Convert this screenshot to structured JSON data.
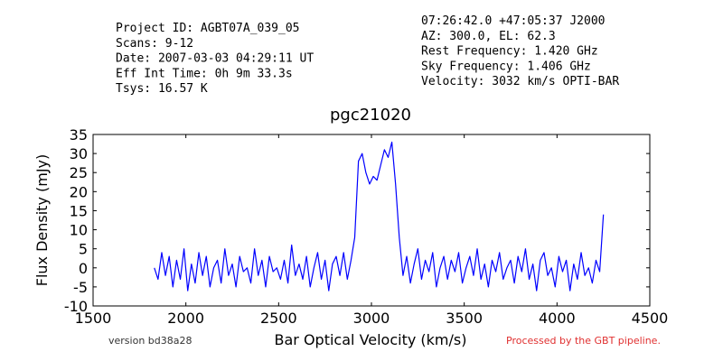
{
  "chart_data": {
    "type": "line",
    "title": "pgc21020",
    "xlabel": "Bar Optical Velocity (km/s)",
    "ylabel": "Flux Density (mJy)",
    "info_left": [
      "Project ID: AGBT07A_039_05",
      "Scans: 9-12",
      "Date: 2007-03-03 04:29:11 UT",
      "Eff Int Time: 0h 9m 33.3s",
      "Tsys: 16.57 K"
    ],
    "info_right": [
      "07:26:42.0 +47:05:37 J2000",
      "AZ: 300.0, EL: 62.3",
      "Rest Frequency:   1.420 GHz",
      "Sky Frequency:    1.406 GHz",
      "Velocity: 3032 km/s OPTI-BAR"
    ],
    "version": "version bd38a28",
    "note": "Processed by the GBT pipeline.",
    "xlim": [
      1500,
      4500
    ],
    "xticks": [
      1500,
      2000,
      2500,
      3000,
      3500,
      4000,
      4500
    ],
    "ylim": [
      -10,
      35
    ],
    "yticks": [
      -10,
      -5,
      0,
      5,
      10,
      15,
      20,
      25,
      30,
      35
    ],
    "x": [
      1830,
      1850,
      1870,
      1890,
      1910,
      1930,
      1950,
      1970,
      1990,
      2010,
      2030,
      2050,
      2070,
      2090,
      2110,
      2130,
      2150,
      2170,
      2190,
      2210,
      2230,
      2250,
      2270,
      2290,
      2310,
      2330,
      2350,
      2370,
      2390,
      2410,
      2430,
      2450,
      2470,
      2490,
      2510,
      2530,
      2550,
      2570,
      2590,
      2610,
      2630,
      2650,
      2670,
      2690,
      2710,
      2730,
      2750,
      2770,
      2790,
      2810,
      2830,
      2850,
      2870,
      2890,
      2910,
      2930,
      2950,
      2970,
      2990,
      3010,
      3030,
      3050,
      3070,
      3090,
      3110,
      3130,
      3150,
      3170,
      3190,
      3210,
      3230,
      3250,
      3270,
      3290,
      3310,
      3330,
      3350,
      3370,
      3390,
      3410,
      3430,
      3450,
      3470,
      3490,
      3510,
      3530,
      3550,
      3570,
      3590,
      3610,
      3630,
      3650,
      3670,
      3690,
      3710,
      3730,
      3750,
      3770,
      3790,
      3810,
      3830,
      3850,
      3870,
      3890,
      3910,
      3930,
      3950,
      3970,
      3990,
      4010,
      4030,
      4050,
      4070,
      4090,
      4110,
      4130,
      4150,
      4170,
      4190,
      4210,
      4230,
      4250
    ],
    "series": [
      {
        "color": "#0000ff",
        "values": [
          0,
          -3,
          4,
          -2,
          3,
          -5,
          2,
          -3,
          5,
          -6,
          1,
          -4,
          4,
          -2,
          3,
          -5,
          0,
          2,
          -4,
          5,
          -2,
          1,
          -5,
          3,
          -1,
          0,
          -4,
          5,
          -2,
          2,
          -5,
          3,
          -1,
          0,
          -3,
          2,
          -4,
          6,
          -2,
          1,
          -3,
          3,
          -5,
          0,
          4,
          -3,
          2,
          -6,
          1,
          3,
          -2,
          4,
          -3,
          2,
          8,
          28,
          30,
          25,
          22,
          24,
          23,
          27,
          31,
          29,
          33,
          22,
          8,
          -2,
          3,
          -4,
          1,
          5,
          -3,
          2,
          -1,
          4,
          -5,
          0,
          3,
          -3,
          2,
          -1,
          4,
          -4,
          0,
          3,
          -2,
          5,
          -3,
          1,
          -5,
          2,
          -1,
          4,
          -3,
          0,
          2,
          -4,
          3,
          -1,
          5,
          -3,
          1,
          -6,
          2,
          4,
          -2,
          0,
          -5,
          3,
          -1,
          2,
          -6,
          1,
          -3,
          4,
          -2,
          0,
          -4,
          2,
          -1,
          14
        ]
      }
    ]
  }
}
